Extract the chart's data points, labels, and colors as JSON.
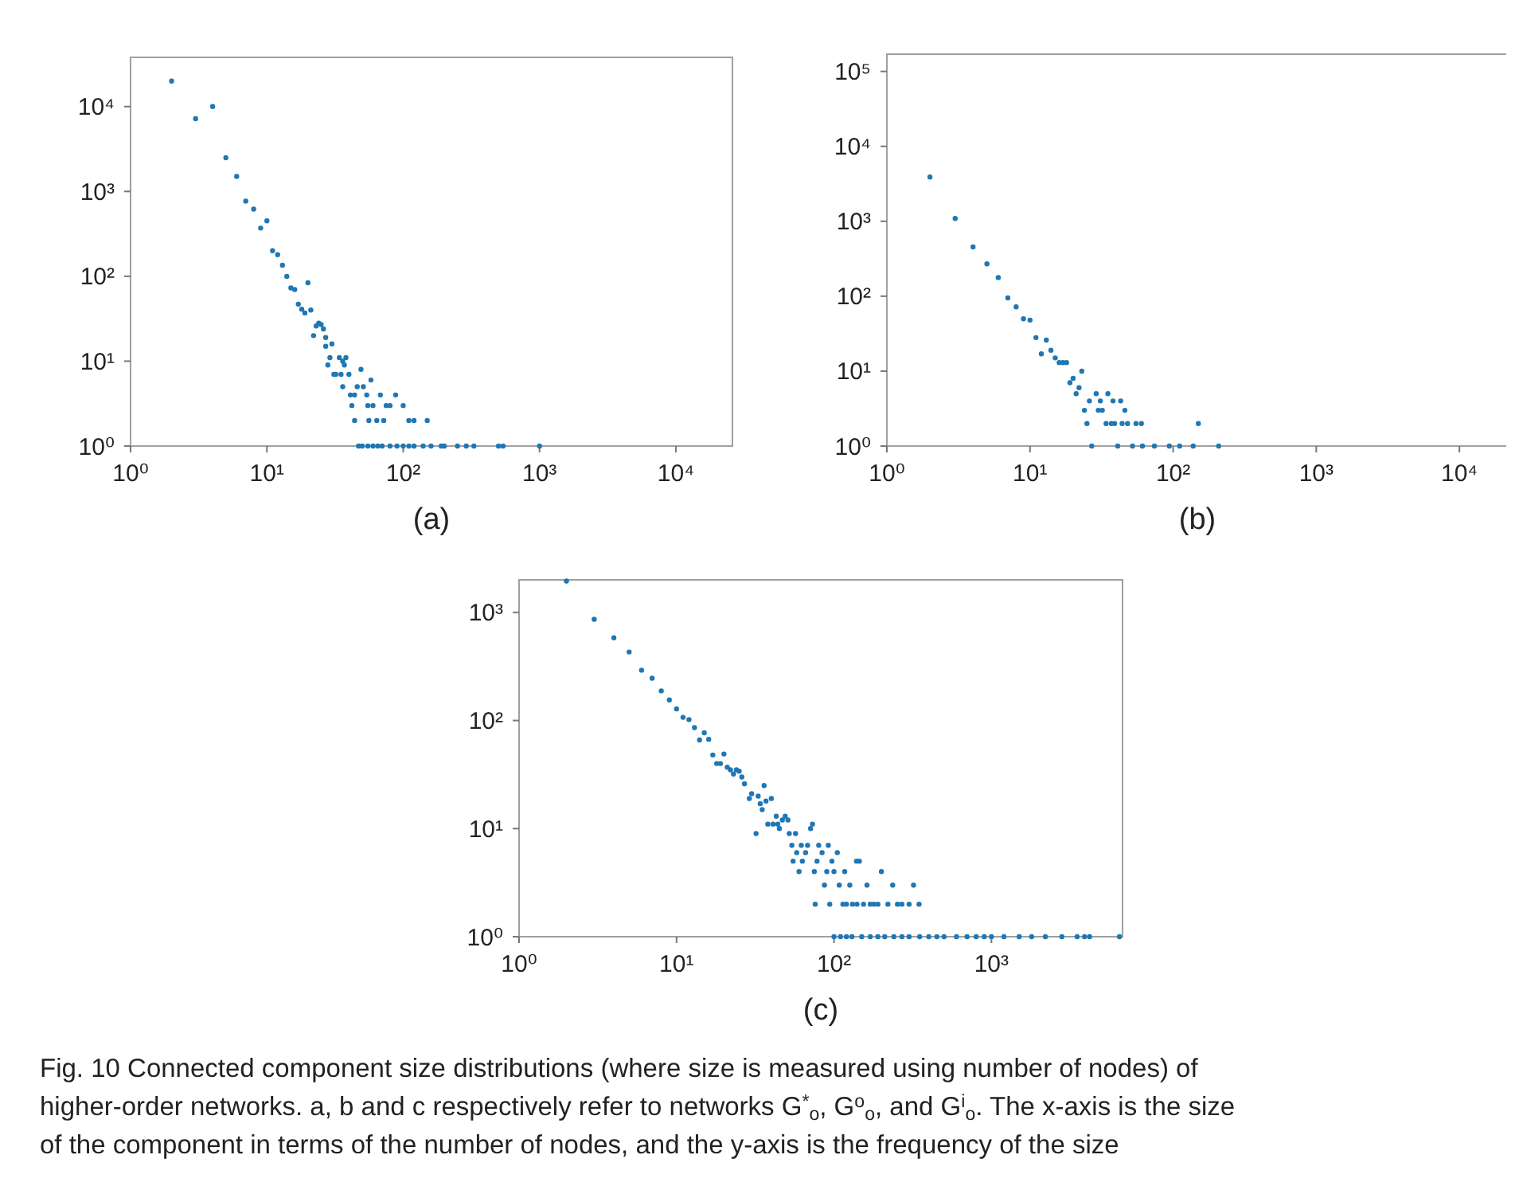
{
  "chart_data": [
    {
      "type": "scatter",
      "xlabel": "(a)",
      "log": "xy",
      "marker": "circle",
      "color": "#1f77b4",
      "xlim": [
        1,
        26000
      ],
      "ylim": [
        1,
        38000
      ],
      "xticks": [
        {
          "value": 1,
          "label": "10⁰"
        },
        {
          "value": 10,
          "label": "10¹"
        },
        {
          "value": 100,
          "label": "10²"
        },
        {
          "value": 1000,
          "label": "10³"
        },
        {
          "value": 10000,
          "label": "10⁴"
        }
      ],
      "yticks": [
        {
          "value": 1,
          "label": "10⁰"
        },
        {
          "value": 10,
          "label": "10¹"
        },
        {
          "value": 100,
          "label": "10²"
        },
        {
          "value": 1000,
          "label": "10³"
        },
        {
          "value": 10000,
          "label": "10⁴"
        }
      ],
      "x": [
        2,
        3,
        4,
        5,
        6,
        7,
        8,
        9,
        10,
        11,
        12,
        13,
        14,
        15,
        16,
        17,
        18,
        19,
        20,
        21,
        22,
        23,
        24,
        25,
        26,
        27,
        27,
        28,
        29,
        30,
        31,
        32,
        34,
        35,
        36,
        36,
        37,
        38,
        40,
        41,
        42,
        44,
        44,
        46,
        49,
        51,
        54,
        55,
        56,
        58,
        60,
        64,
        68,
        72,
        75,
        80,
        88,
        100,
        110,
        120,
        150,
        47,
        50,
        55,
        60,
        65,
        70,
        80,
        90,
        100,
        110,
        120,
        140,
        160,
        190,
        200,
        250,
        290,
        330,
        500,
        540,
        1000
      ],
      "values": [
        20000,
        7200,
        10000,
        2500,
        1500,
        770,
        620,
        370,
        450,
        200,
        180,
        135,
        100,
        73,
        70,
        47,
        41,
        37,
        84,
        40,
        20,
        26,
        28,
        27,
        24,
        19,
        15,
        9,
        11,
        16,
        7,
        7,
        11,
        7,
        10,
        5,
        9,
        11,
        7,
        4,
        3,
        4,
        2,
        5,
        8,
        5,
        4,
        3,
        2,
        6,
        3,
        2,
        4,
        2,
        3,
        3,
        4,
        3,
        2,
        2,
        2,
        1,
        1,
        1,
        1,
        1,
        1,
        1,
        1,
        1,
        1,
        1,
        1,
        1,
        1,
        1,
        1,
        1,
        1,
        1,
        1,
        1
      ]
    },
    {
      "type": "scatter",
      "xlabel": "(b)",
      "log": "xy",
      "marker": "circle",
      "color": "#1f77b4",
      "xlim": [
        1,
        21800
      ],
      "ylim": [
        1,
        170000
      ],
      "xticks": [
        {
          "value": 1,
          "label": "10⁰"
        },
        {
          "value": 10,
          "label": "10¹"
        },
        {
          "value": 100,
          "label": "10²"
        },
        {
          "value": 1000,
          "label": "10³"
        },
        {
          "value": 10000,
          "label": "10⁴"
        }
      ],
      "yticks": [
        {
          "value": 1,
          "label": "10⁰"
        },
        {
          "value": 10,
          "label": "10¹"
        },
        {
          "value": 100,
          "label": "10²"
        },
        {
          "value": 1000,
          "label": "10³"
        },
        {
          "value": 10000,
          "label": "10⁴"
        },
        {
          "value": 100000,
          "label": "10⁵"
        }
      ],
      "x": [
        2,
        3,
        4,
        5,
        6,
        7,
        8,
        9,
        10,
        11,
        12,
        13,
        14,
        15,
        16,
        17,
        18,
        19,
        20,
        21,
        22,
        23,
        24,
        25,
        26,
        27,
        29,
        30,
        31,
        32,
        34,
        35,
        37,
        38,
        39,
        41,
        43,
        44,
        46,
        48,
        55,
        60,
        150,
        52,
        61,
        74,
        94,
        111,
        138,
        208
      ],
      "values": [
        3900,
        1090,
        455,
        270,
        177,
        95,
        72,
        50,
        48,
        28,
        17,
        26,
        19,
        15,
        13,
        13,
        13,
        7,
        8,
        5,
        6,
        10,
        3,
        2,
        4,
        1,
        5,
        3,
        4,
        3,
        2,
        5,
        2,
        4,
        2,
        1,
        4,
        2,
        3,
        2,
        2,
        2,
        2,
        1,
        1,
        1,
        1,
        1,
        1,
        1
      ]
    },
    {
      "type": "scatter",
      "xlabel": "(c)",
      "log": "xy",
      "marker": "circle",
      "color": "#1f77b4",
      "xlim": [
        1,
        6800
      ],
      "ylim": [
        1,
        2000
      ],
      "xticks": [
        {
          "value": 1,
          "label": "10⁰"
        },
        {
          "value": 10,
          "label": "10¹"
        },
        {
          "value": 100,
          "label": "10²"
        },
        {
          "value": 1000,
          "label": "10³"
        }
      ],
      "yticks": [
        {
          "value": 1,
          "label": "10⁰"
        },
        {
          "value": 10,
          "label": "10¹"
        },
        {
          "value": 100,
          "label": "10²"
        },
        {
          "value": 1000,
          "label": "10³"
        }
      ],
      "x": [
        2,
        3,
        4,
        5,
        6,
        7,
        8,
        9,
        10,
        11,
        12,
        13,
        14,
        15,
        16,
        17,
        18,
        19,
        20,
        21,
        22,
        23,
        24,
        25,
        26,
        27,
        29,
        30,
        32,
        33,
        34,
        35,
        36,
        37,
        38,
        40,
        41,
        43,
        44,
        45,
        47,
        49,
        51,
        52,
        54,
        55,
        57,
        58,
        60,
        62,
        63,
        66,
        68,
        71,
        73,
        75,
        76,
        78,
        80,
        84,
        87,
        90,
        92,
        94,
        97,
        100,
        105,
        108,
        114,
        117,
        126,
        131,
        139,
        145,
        154,
        162,
        179,
        200,
        220,
        236,
        253,
        320,
        347,
        120,
        140,
        170,
        190,
        270,
        300,
        100,
        110,
        120,
        130,
        150,
        170,
        190,
        210,
        240,
        270,
        300,
        350,
        400,
        450,
        500,
        600,
        700,
        800,
        900,
        1000,
        1200,
        1500,
        1800,
        2200,
        2800,
        3500,
        3900,
        4200,
        6500
      ],
      "values": [
        1950,
        864,
        582,
        430,
        292,
        246,
        188,
        155,
        128,
        107,
        102,
        86,
        66,
        77,
        67,
        48,
        40,
        40,
        49,
        37,
        35,
        32,
        35,
        34,
        30,
        26,
        19,
        21,
        9,
        20,
        17,
        15,
        25,
        18,
        11,
        19,
        11,
        13,
        11,
        10,
        12,
        13,
        12,
        9,
        7,
        5,
        9,
        6,
        4,
        7,
        5,
        6,
        7,
        10,
        11,
        4,
        2,
        5,
        7,
        6,
        3,
        4,
        7,
        2,
        5,
        4,
        6,
        3,
        2,
        4,
        3,
        2,
        5,
        5,
        2,
        3,
        2,
        4,
        2,
        3,
        2,
        3,
        2,
        2,
        2,
        2,
        2,
        2,
        2,
        1,
        1,
        1,
        1,
        1,
        1,
        1,
        1,
        1,
        1,
        1,
        1,
        1,
        1,
        1,
        1,
        1,
        1,
        1,
        1,
        1,
        1,
        1,
        1,
        1,
        1,
        1,
        1,
        1
      ],
      "annotations": [
        "Fig. 10  Connected component size distributions (where size is measured using number of nodes) of higher-order networks. a, b and c respectively refer to networks G$^{*}$$_{o}$, G$^{o}$$_{o}$, and G$^{i}$$_{o}$. The x-axis is the size of the component in terms of the number of nodes, and the y-axis is the frequency of the size"
      ]
    }
  ]
}
